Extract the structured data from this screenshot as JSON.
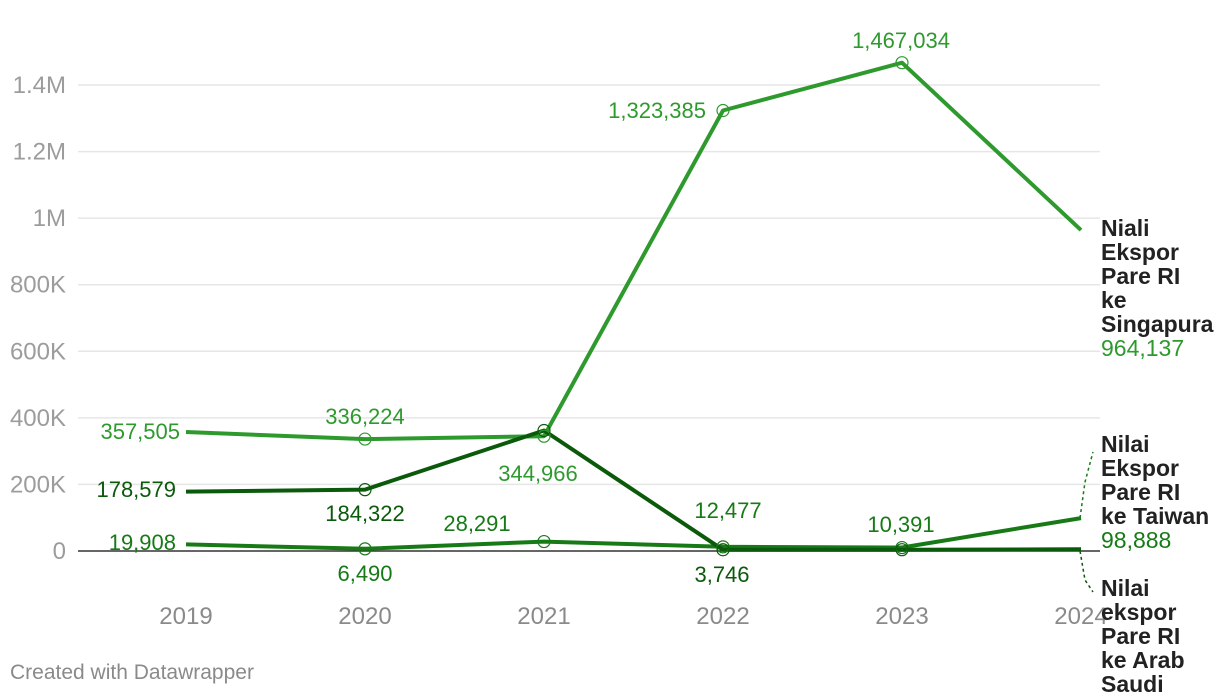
{
  "chart_data": {
    "type": "line",
    "x": [
      "2019",
      "2020",
      "2021",
      "2022",
      "2023",
      "2024"
    ],
    "y_ticks": [
      "0",
      "200K",
      "400K",
      "600K",
      "800K",
      "1M",
      "1.2M",
      "1.4M"
    ],
    "ylim": [
      0,
      1400000
    ],
    "grid": true,
    "series": [
      {
        "name": "Niali Ekspor Pare RI ke Singapura",
        "color": "#2e9a2e",
        "values": [
          357505,
          336224,
          344966,
          1323385,
          1467034,
          964137
        ],
        "labels": [
          "357,505",
          "336,224",
          "344,966",
          "1,323,385",
          "1,467,034",
          ""
        ],
        "end_value": "964,137"
      },
      {
        "name": "Nilai Ekspor Pare RI ke Taiwan",
        "color": "#177a17",
        "values": [
          19908,
          6490,
          28291,
          12477,
          10391,
          98888
        ],
        "labels": [
          "19,908",
          "6,490",
          "28,291",
          "12,477",
          "10,391",
          ""
        ],
        "end_value": "98,888"
      },
      {
        "name": "Nilai ekspor Pare RI ke Arab Saudi",
        "color": "#0b5a0b",
        "values": [
          178579,
          184322,
          362000,
          3746,
          4000,
          5000
        ],
        "labels": [
          "178,579",
          "184,322",
          "",
          "3,746",
          "",
          ""
        ],
        "end_value": ""
      }
    ]
  },
  "footer": "Created with Datawrapper"
}
